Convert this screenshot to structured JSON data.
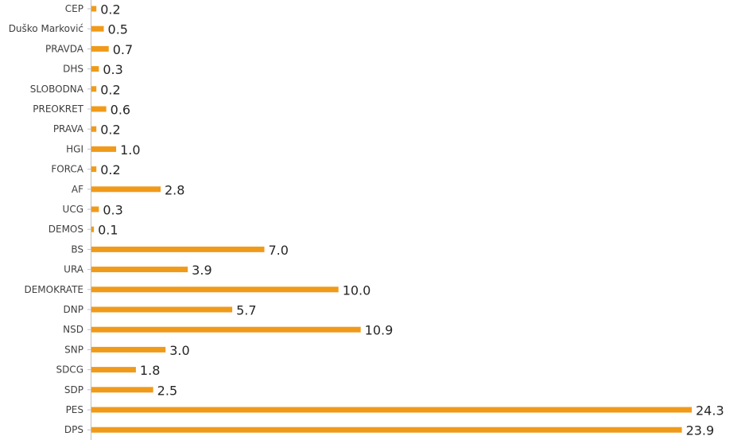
{
  "chart_data": {
    "type": "bar",
    "orientation": "horizontal",
    "categories": [
      "CEP",
      "Duško Marković",
      "PRAVDA",
      "DHS",
      "SLOBODNA",
      "PREOKRET",
      "PRAVA",
      "HGI",
      "FORCA",
      "AF",
      "UCG",
      "DEMOS",
      "BS",
      "URA",
      "DEMOKRATE",
      "DNP",
      "NSD",
      "SNP",
      "SDCG",
      "SDP",
      "PES",
      "DPS"
    ],
    "values": [
      0.2,
      0.5,
      0.7,
      0.3,
      0.2,
      0.6,
      0.2,
      1.0,
      0.2,
      2.8,
      0.3,
      0.1,
      7.0,
      3.9,
      10.0,
      5.7,
      10.9,
      3.0,
      1.8,
      2.5,
      24.3,
      23.9
    ],
    "value_labels": [
      "0.2",
      "0.5",
      "0.7",
      "0.3",
      "0.2",
      "0.6",
      "0.2",
      "1.0",
      "0.2",
      "2.8",
      "0.3",
      "0.1",
      "7.0",
      "3.9",
      "10.0",
      "5.7",
      "10.9",
      "3.0",
      "1.8",
      "2.5",
      "24.3",
      "23.9"
    ],
    "xlim": [
      0,
      24.3
    ],
    "bar_color": "#f09a1a",
    "axis_color": "#bfbfbf",
    "grid": false,
    "legend": "none"
  }
}
